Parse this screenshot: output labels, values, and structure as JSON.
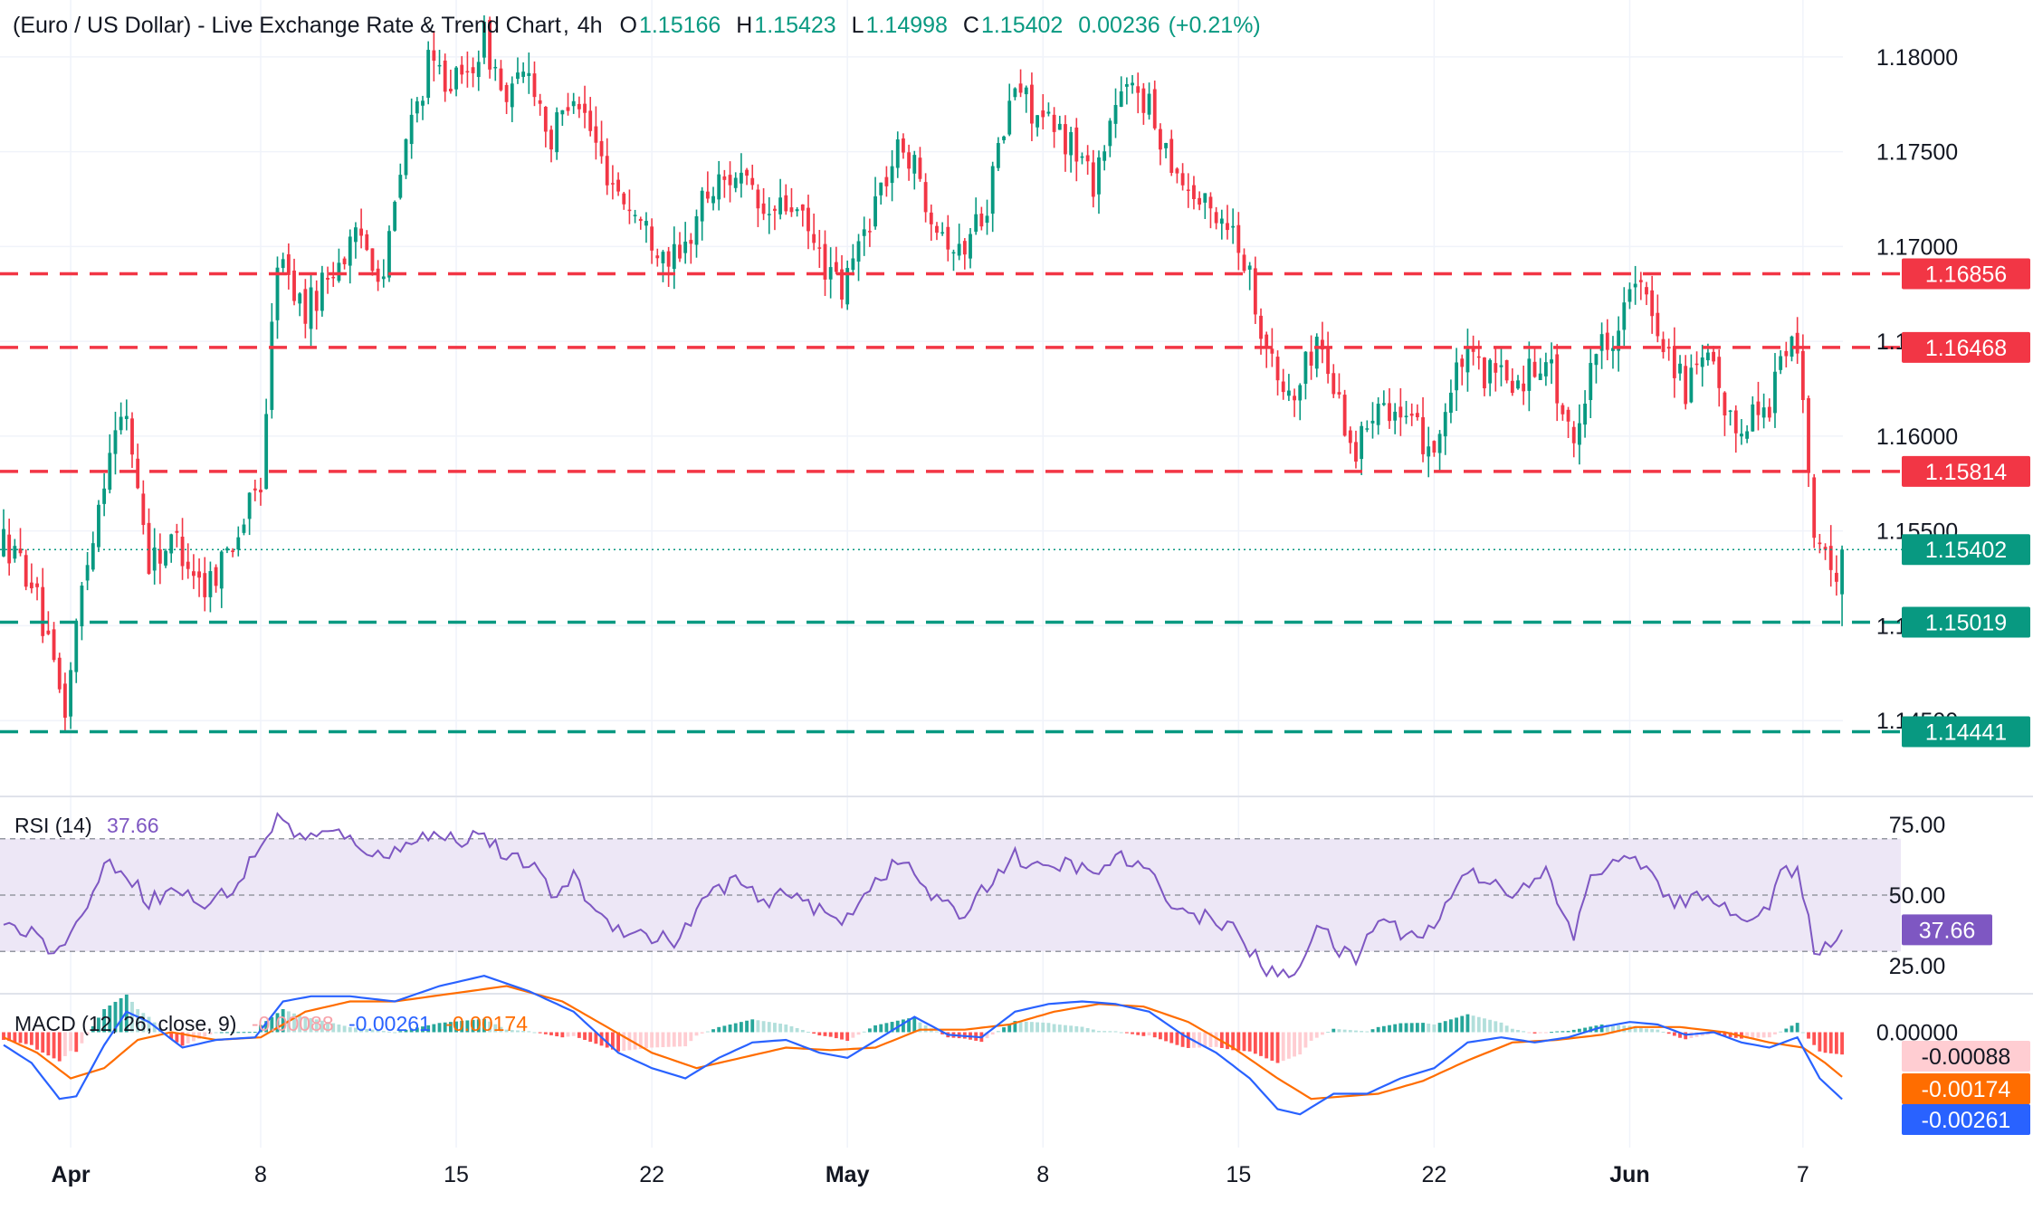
{
  "header": {
    "title": "(Euro / US Dollar) - Live Exchange Rate & Trend Chart",
    "interval": "4h",
    "o_label": "O",
    "o_value": "1.15166",
    "h_label": "H",
    "h_value": "1.15423",
    "l_label": "L",
    "l_value": "1.14998",
    "c_label": "C",
    "c_value": "1.15402",
    "change": "0.00236",
    "change_pct": "(+0.21%)"
  },
  "colors": {
    "up": "#089981",
    "down": "#f23645",
    "grid": "#f0f3fa",
    "axis_text": "#131722",
    "rsi_line": "#7e57c2",
    "rsi_band": "#ede7f6",
    "macd_line": "#2962ff",
    "signal_line": "#ff6d00",
    "hist_pos_strong": "#26a69a",
    "hist_pos_weak": "#b2dfdb",
    "hist_neg_strong": "#ff5252",
    "hist_neg_weak": "#ffcdd2"
  },
  "chart_data": [
    {
      "type": "candlestick",
      "panel": "price",
      "ylim": [
        1.141,
        1.183
      ],
      "y_ticks": [
        "1.18000",
        "1.17500",
        "1.17000",
        "1.16500",
        "1.16000",
        "1.15500",
        "1.15000",
        "1.14500"
      ],
      "y_tick_values": [
        1.18,
        1.175,
        1.17,
        1.165,
        1.16,
        1.155,
        1.15,
        1.145
      ],
      "x_ticks": [
        "Apr",
        "8",
        "15",
        "22",
        "May",
        "8",
        "15",
        "22",
        "Jun",
        "7"
      ],
      "x_tick_bars": [
        12,
        46,
        81,
        116,
        151,
        186,
        221,
        256,
        291,
        322
      ],
      "bar_count": 330,
      "anchor_closes": [
        [
          0,
          1.1545
        ],
        [
          5,
          1.1525
        ],
        [
          9,
          1.1475
        ],
        [
          11,
          1.1455
        ],
        [
          14,
          1.152
        ],
        [
          19,
          1.1595
        ],
        [
          22,
          1.1612
        ],
        [
          26,
          1.1535
        ],
        [
          31,
          1.1545
        ],
        [
          36,
          1.152
        ],
        [
          42,
          1.155
        ],
        [
          46,
          1.1575
        ],
        [
          49,
          1.1695
        ],
        [
          54,
          1.1665
        ],
        [
          59,
          1.169
        ],
        [
          64,
          1.1705
        ],
        [
          68,
          1.1685
        ],
        [
          72,
          1.1755
        ],
        [
          76,
          1.1795
        ],
        [
          82,
          1.1785
        ],
        [
          86,
          1.181
        ],
        [
          90,
          1.1775
        ],
        [
          94,
          1.1795
        ],
        [
          98,
          1.1755
        ],
        [
          102,
          1.1785
        ],
        [
          107,
          1.1745
        ],
        [
          111,
          1.1725
        ],
        [
          116,
          1.1705
        ],
        [
          121,
          1.169
        ],
        [
          125,
          1.1725
        ],
        [
          131,
          1.174
        ],
        [
          136,
          1.1715
        ],
        [
          141,
          1.1722
        ],
        [
          146,
          1.1695
        ],
        [
          150,
          1.1675
        ],
        [
          156,
          1.1725
        ],
        [
          161,
          1.1755
        ],
        [
          166,
          1.172
        ],
        [
          171,
          1.1695
        ],
        [
          176,
          1.1725
        ],
        [
          181,
          1.1785
        ],
        [
          186,
          1.1765
        ],
        [
          191,
          1.1755
        ],
        [
          195,
          1.1735
        ],
        [
          199,
          1.1775
        ],
        [
          203,
          1.1785
        ],
        [
          206,
          1.1765
        ],
        [
          211,
          1.1735
        ],
        [
          215,
          1.172
        ],
        [
          219,
          1.1715
        ],
        [
          222,
          1.1695
        ],
        [
          225,
          1.166
        ],
        [
          228,
          1.1628
        ],
        [
          231,
          1.162
        ],
        [
          235,
          1.1652
        ],
        [
          239,
          1.1618
        ],
        [
          242,
          1.159
        ],
        [
          246,
          1.1625
        ],
        [
          251,
          1.1605
        ],
        [
          256,
          1.1595
        ],
        [
          261,
          1.164
        ],
        [
          266,
          1.1632
        ],
        [
          271,
          1.1628
        ],
        [
          276,
          1.1645
        ],
        [
          281,
          1.159
        ],
        [
          284,
          1.1642
        ],
        [
          288,
          1.1655
        ],
        [
          292,
          1.168
        ],
        [
          297,
          1.1652
        ],
        [
          301,
          1.1625
        ],
        [
          305,
          1.164
        ],
        [
          309,
          1.1605
        ],
        [
          313,
          1.1612
        ],
        [
          316,
          1.1618
        ],
        [
          318,
          1.1643
        ],
        [
          321,
          1.1648
        ],
        [
          324,
          1.155
        ],
        [
          327,
          1.1522
        ],
        [
          329,
          1.154
        ]
      ],
      "last_candle": {
        "open": 1.15166,
        "high": 1.15423,
        "low": 1.14998,
        "close": 1.15402
      },
      "horizontal_levels": [
        {
          "value": 1.16856,
          "label": "1.16856",
          "kind": "resistance",
          "color": "#f23645"
        },
        {
          "value": 1.16468,
          "label": "1.16468",
          "kind": "resistance",
          "color": "#f23645"
        },
        {
          "value": 1.15814,
          "label": "1.15814",
          "kind": "resistance",
          "color": "#f23645"
        },
        {
          "value": 1.15019,
          "label": "1.15019",
          "kind": "support",
          "color": "#089981"
        },
        {
          "value": 1.14441,
          "label": "1.14441",
          "kind": "support",
          "color": "#089981"
        }
      ],
      "current_price": {
        "value": 1.15402,
        "label": "1.15402",
        "color": "#089981"
      }
    },
    {
      "type": "line",
      "panel": "rsi",
      "title": "RSI (14)",
      "current_value": "37.66",
      "ylim": [
        15,
        85
      ],
      "y_ticks": [
        "75.00",
        "50.00",
        "25.00"
      ],
      "y_tick_values": [
        75,
        50,
        25
      ],
      "band": [
        30,
        70
      ],
      "midline": 50,
      "current_value_num": 37.66,
      "anchors": [
        [
          0,
          42
        ],
        [
          4,
          38
        ],
        [
          8,
          32
        ],
        [
          11,
          31
        ],
        [
          15,
          48
        ],
        [
          19,
          62
        ],
        [
          22,
          58
        ],
        [
          26,
          48
        ],
        [
          31,
          52
        ],
        [
          36,
          46
        ],
        [
          42,
          54
        ],
        [
          46,
          68
        ],
        [
          49,
          77
        ],
        [
          54,
          70
        ],
        [
          59,
          72
        ],
        [
          64,
          68
        ],
        [
          68,
          62
        ],
        [
          72,
          70
        ],
        [
          76,
          71
        ],
        [
          82,
          70
        ],
        [
          86,
          72
        ],
        [
          90,
          62
        ],
        [
          94,
          62
        ],
        [
          98,
          50
        ],
        [
          102,
          56
        ],
        [
          107,
          42
        ],
        [
          111,
          38
        ],
        [
          116,
          35
        ],
        [
          121,
          34
        ],
        [
          125,
          48
        ],
        [
          131,
          56
        ],
        [
          136,
          46
        ],
        [
          141,
          52
        ],
        [
          146,
          44
        ],
        [
          150,
          40
        ],
        [
          156,
          56
        ],
        [
          161,
          62
        ],
        [
          166,
          50
        ],
        [
          171,
          42
        ],
        [
          176,
          54
        ],
        [
          181,
          64
        ],
        [
          186,
          58
        ],
        [
          191,
          62
        ],
        [
          195,
          56
        ],
        [
          199,
          64
        ],
        [
          203,
          60
        ],
        [
          206,
          55
        ],
        [
          211,
          44
        ],
        [
          215,
          42
        ],
        [
          219,
          40
        ],
        [
          222,
          33
        ],
        [
          225,
          25
        ],
        [
          228,
          21
        ],
        [
          231,
          22
        ],
        [
          235,
          40
        ],
        [
          239,
          30
        ],
        [
          242,
          27
        ],
        [
          246,
          42
        ],
        [
          251,
          36
        ],
        [
          256,
          38
        ],
        [
          261,
          58
        ],
        [
          266,
          56
        ],
        [
          271,
          50
        ],
        [
          276,
          58
        ],
        [
          281,
          34
        ],
        [
          284,
          58
        ],
        [
          288,
          60
        ],
        [
          292,
          65
        ],
        [
          297,
          50
        ],
        [
          301,
          46
        ],
        [
          305,
          52
        ],
        [
          309,
          42
        ],
        [
          313,
          44
        ],
        [
          316,
          46
        ],
        [
          318,
          58
        ],
        [
          321,
          57
        ],
        [
          324,
          32
        ],
        [
          327,
          30
        ],
        [
          329,
          37.66
        ]
      ]
    },
    {
      "type": "line",
      "panel": "macd",
      "title": "MACD (12, 26, close, 9)",
      "legend_values": [
        "-0.00088",
        "-0.00261",
        "-0.00174"
      ],
      "ylim": [
        -0.0045,
        0.0015
      ],
      "y_ticks": [
        "0.00000"
      ],
      "y_tick_values": [
        0.0
      ],
      "series": [
        {
          "name": "MACD",
          "color": "#2962ff",
          "current": -0.00261
        },
        {
          "name": "Signal",
          "color": "#ff6d00",
          "current": -0.00174
        },
        {
          "name": "Histogram",
          "color": "#ff5252",
          "current": -0.00088
        }
      ],
      "macd_anchors": [
        [
          0,
          -0.0005
        ],
        [
          5,
          -0.0012
        ],
        [
          10,
          -0.0026
        ],
        [
          13,
          -0.0025
        ],
        [
          18,
          -0.0005
        ],
        [
          22,
          0.0008
        ],
        [
          26,
          0.0004
        ],
        [
          32,
          -0.0006
        ],
        [
          38,
          -0.0003
        ],
        [
          45,
          -0.0002
        ],
        [
          50,
          0.0012
        ],
        [
          55,
          0.0014
        ],
        [
          62,
          0.0014
        ],
        [
          70,
          0.0012
        ],
        [
          78,
          0.0018
        ],
        [
          86,
          0.0022
        ],
        [
          94,
          0.0016
        ],
        [
          102,
          0.0008
        ],
        [
          110,
          -0.0008
        ],
        [
          116,
          -0.0014
        ],
        [
          122,
          -0.0018
        ],
        [
          128,
          -0.001
        ],
        [
          134,
          -0.0004
        ],
        [
          140,
          -0.0003
        ],
        [
          146,
          -0.0008
        ],
        [
          151,
          -0.001
        ],
        [
          157,
          -0.0002
        ],
        [
          163,
          0.0006
        ],
        [
          169,
          -0.0001
        ],
        [
          175,
          -0.0002
        ],
        [
          181,
          0.0008
        ],
        [
          187,
          0.0011
        ],
        [
          193,
          0.0012
        ],
        [
          199,
          0.0011
        ],
        [
          205,
          0.0008
        ],
        [
          211,
          -0.0001
        ],
        [
          217,
          -0.0008
        ],
        [
          223,
          -0.0018
        ],
        [
          228,
          -0.003
        ],
        [
          232,
          -0.0032
        ],
        [
          238,
          -0.0024
        ],
        [
          244,
          -0.0024
        ],
        [
          250,
          -0.0018
        ],
        [
          256,
          -0.0014
        ],
        [
          262,
          -0.0004
        ],
        [
          268,
          -0.0002
        ],
        [
          274,
          -0.0004
        ],
        [
          280,
          -0.0002
        ],
        [
          286,
          0.0002
        ],
        [
          291,
          0.0004
        ],
        [
          296,
          0.0003
        ],
        [
          301,
          -0.0001
        ],
        [
          306,
          0.0
        ],
        [
          311,
          -0.0004
        ],
        [
          316,
          -0.0006
        ],
        [
          321,
          -0.0002
        ],
        [
          325,
          -0.0018
        ],
        [
          329,
          -0.00261
        ]
      ],
      "signal_anchors": [
        [
          0,
          -0.0002
        ],
        [
          6,
          -0.0008
        ],
        [
          12,
          -0.0018
        ],
        [
          18,
          -0.0014
        ],
        [
          24,
          -0.0003
        ],
        [
          30,
          0.0
        ],
        [
          38,
          -0.0003
        ],
        [
          46,
          -0.0002
        ],
        [
          54,
          0.0008
        ],
        [
          62,
          0.0012
        ],
        [
          70,
          0.0012
        ],
        [
          80,
          0.0015
        ],
        [
          90,
          0.0018
        ],
        [
          100,
          0.0012
        ],
        [
          108,
          0.0002
        ],
        [
          116,
          -0.0008
        ],
        [
          124,
          -0.0014
        ],
        [
          132,
          -0.001
        ],
        [
          140,
          -0.0006
        ],
        [
          148,
          -0.0007
        ],
        [
          156,
          -0.0006
        ],
        [
          164,
          0.0001
        ],
        [
          172,
          0.0001
        ],
        [
          180,
          0.0003
        ],
        [
          188,
          0.0008
        ],
        [
          196,
          0.0011
        ],
        [
          204,
          0.001
        ],
        [
          212,
          0.0004
        ],
        [
          220,
          -0.0006
        ],
        [
          228,
          -0.0018
        ],
        [
          234,
          -0.0026
        ],
        [
          240,
          -0.0025
        ],
        [
          246,
          -0.0024
        ],
        [
          254,
          -0.0019
        ],
        [
          262,
          -0.0011
        ],
        [
          270,
          -0.0004
        ],
        [
          278,
          -0.0003
        ],
        [
          286,
          -0.0001
        ],
        [
          292,
          0.0002
        ],
        [
          300,
          0.0002
        ],
        [
          308,
          0.0
        ],
        [
          316,
          -0.0004
        ],
        [
          322,
          -0.0006
        ],
        [
          326,
          -0.0012
        ],
        [
          329,
          -0.00174
        ]
      ]
    }
  ]
}
